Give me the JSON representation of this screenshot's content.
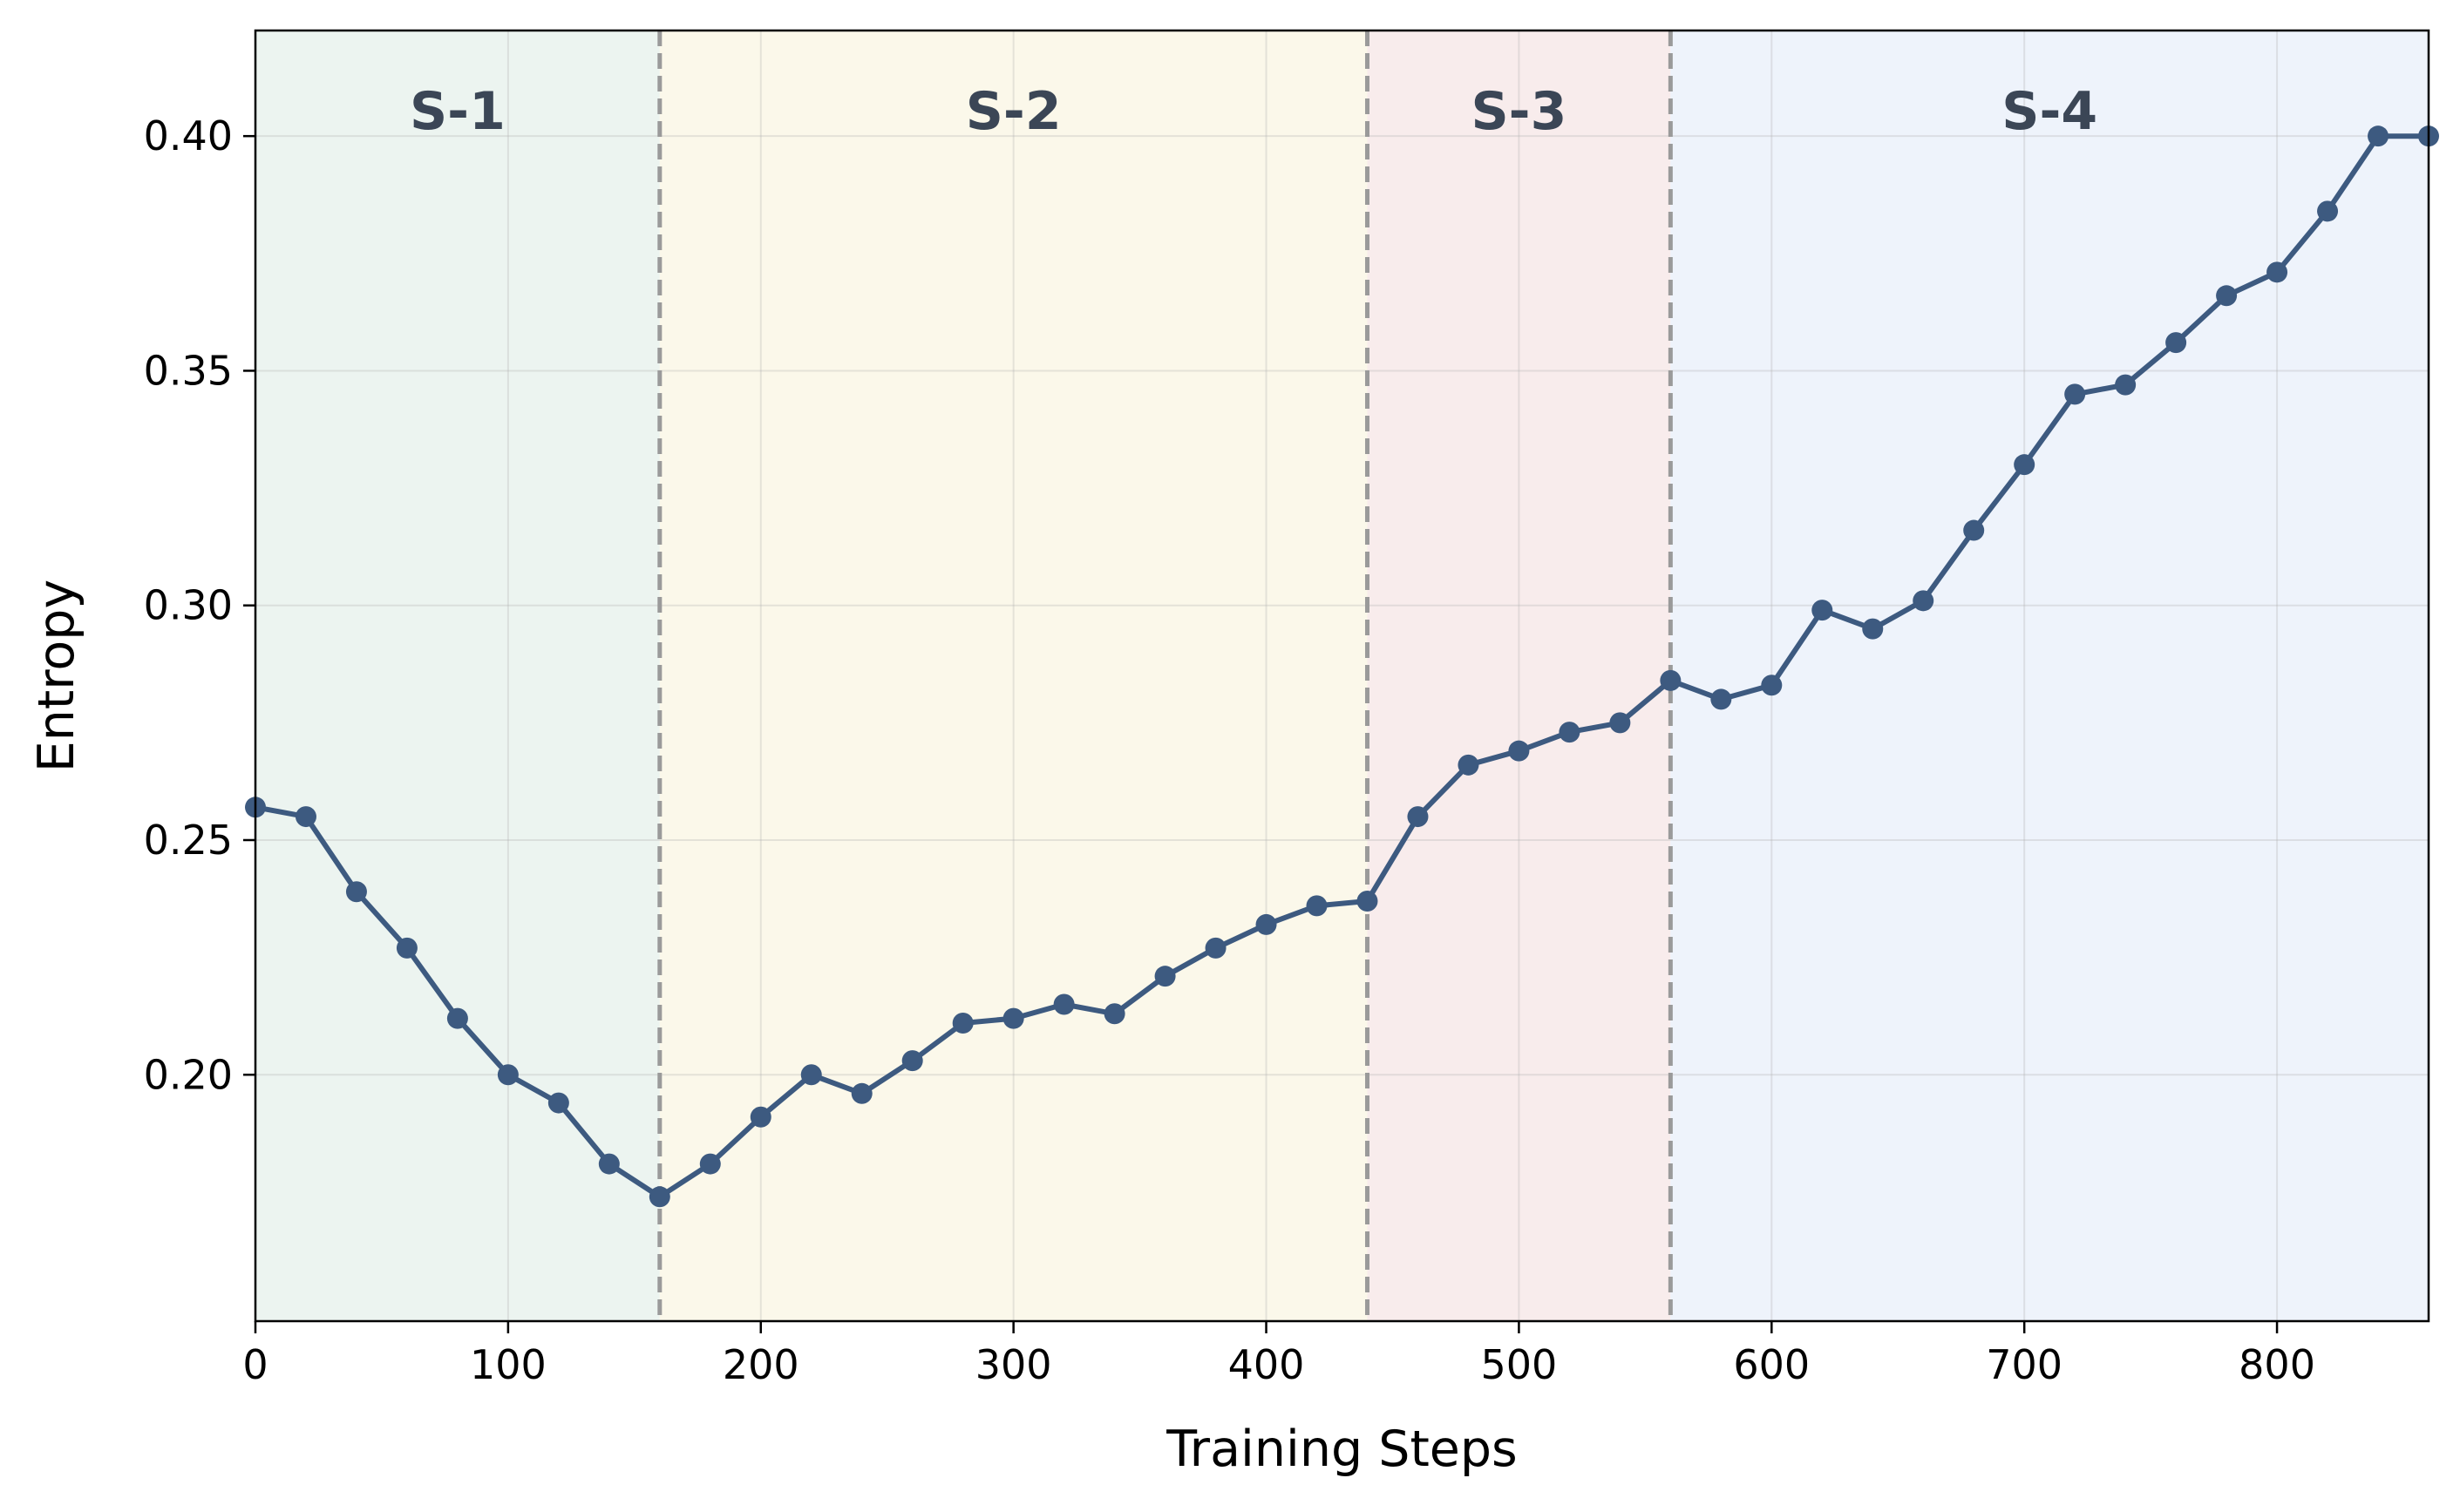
{
  "chart_data": {
    "type": "line",
    "title": "",
    "xlabel": "Training Steps",
    "ylabel": "Entropy",
    "xlim": [
      0,
      860
    ],
    "ylim": [
      0.1475,
      0.4225
    ],
    "xticks": [
      0,
      100,
      200,
      300,
      400,
      500,
      600,
      700,
      800
    ],
    "xtick_labels": [
      "0",
      "100",
      "200",
      "300",
      "400",
      "500",
      "600",
      "700",
      "800"
    ],
    "yticks": [
      0.2,
      0.25,
      0.3,
      0.35,
      0.4
    ],
    "ytick_labels": [
      "0.20",
      "0.25",
      "0.30",
      "0.35",
      "0.40"
    ],
    "grid": true,
    "line_color": "#3d5a80",
    "stages": [
      {
        "label": "S-1",
        "start": 0,
        "end": 160,
        "color": "#ecf4f0"
      },
      {
        "label": "S-2",
        "start": 160,
        "end": 440,
        "color": "#fbf8ea"
      },
      {
        "label": "S-3",
        "start": 440,
        "end": 560,
        "color": "#f8ecec"
      },
      {
        "label": "S-4",
        "start": 560,
        "end": 860,
        "color": "#eef3fb"
      }
    ],
    "boundaries": [
      160,
      440,
      560
    ],
    "series": [
      {
        "x": [
          0,
          20,
          40,
          60,
          80,
          100,
          120,
          140,
          160,
          180,
          200,
          220,
          240,
          260,
          280,
          300,
          320,
          340,
          360,
          380,
          400,
          420,
          440,
          460,
          480,
          500,
          520,
          540,
          560,
          580,
          600,
          620,
          640,
          660,
          680,
          700,
          720,
          740,
          760,
          780,
          800,
          820,
          840,
          860
        ],
        "values": [
          0.257,
          0.255,
          0.239,
          0.227,
          0.212,
          0.2,
          0.194,
          0.181,
          0.174,
          0.181,
          0.191,
          0.2,
          0.196,
          0.203,
          0.211,
          0.212,
          0.215,
          0.213,
          0.221,
          0.227,
          0.232,
          0.236,
          0.237,
          0.255,
          0.266,
          0.269,
          0.273,
          0.275,
          0.284,
          0.28,
          0.283,
          0.299,
          0.295,
          0.301,
          0.316,
          0.33,
          0.345,
          0.347,
          0.356,
          0.366,
          0.371,
          0.384,
          0.4,
          0.4
        ]
      }
    ]
  }
}
